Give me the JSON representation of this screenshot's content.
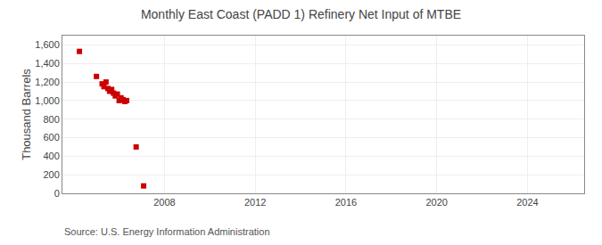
{
  "chart_data": {
    "type": "scatter",
    "title": "Monthly East Coast (PADD 1) Refinery Net Input of MTBE",
    "ylabel": "Thousand Barrels",
    "annotations": [
      "Source: U.S. Energy Information Administration"
    ],
    "x": [
      2004.25,
      2005.0,
      2005.25,
      2005.33,
      2005.42,
      2005.5,
      2005.58,
      2005.67,
      2005.75,
      2005.83,
      2005.92,
      2006.0,
      2006.08,
      2006.17,
      2006.25,
      2006.33,
      2006.75,
      2007.08
    ],
    "values": [
      1530,
      1260,
      1180,
      1150,
      1200,
      1130,
      1100,
      1120,
      1080,
      1050,
      1070,
      1000,
      1030,
      1010,
      990,
      1000,
      500,
      80
    ],
    "color": "#cc0000",
    "marker": "square",
    "xlim": [
      2003.5,
      2026.5
    ],
    "ylim": [
      0,
      1700
    ],
    "xticks": [
      2008,
      2012,
      2016,
      2020,
      2024
    ],
    "yticks": [
      0,
      200,
      400,
      600,
      800,
      {
        "value": 1000,
        "label": "1,000"
      },
      {
        "value": 1200,
        "label": "1,200"
      },
      {
        "value": 1400,
        "label": "1,400"
      },
      {
        "value": 1600,
        "label": "1,600"
      }
    ],
    "grid": true
  }
}
